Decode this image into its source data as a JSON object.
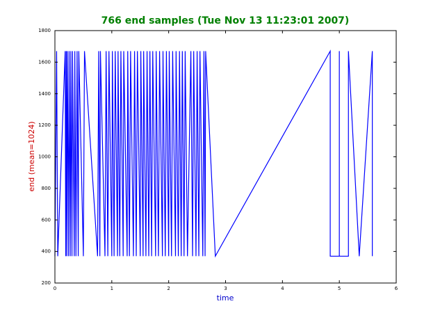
{
  "chart_data": {
    "type": "line",
    "title": "766 end samples (Tue Nov 13 11:23:01 2007)",
    "x_label": "time",
    "y_label": "end (mean=1024)",
    "color": "#0000ff",
    "x": [
      0,
      0.03,
      0.05,
      0.18,
      0.19,
      0.2,
      0.21,
      0.22,
      0.24,
      0.25,
      0.27,
      0.28,
      0.3,
      0.31,
      0.34,
      0.35,
      0.37,
      0.39,
      0.41,
      0.42,
      0.5,
      0.52,
      0.75,
      0.77,
      0.79,
      0.8,
      0.88,
      0.9,
      0.93,
      0.95,
      1.0,
      1.01,
      1.04,
      1.06,
      1.1,
      1.11,
      1.14,
      1.16,
      1.2,
      1.21,
      1.27,
      1.28,
      1.31,
      1.33,
      1.38,
      1.4,
      1.43,
      1.45,
      1.5,
      1.51,
      1.55,
      1.56,
      1.6,
      1.62,
      1.65,
      1.67,
      1.7,
      1.72,
      1.77,
      1.78,
      1.82,
      1.84,
      1.89,
      1.9,
      1.94,
      1.96,
      2.0,
      2.01,
      2.05,
      2.07,
      2.12,
      2.13,
      2.17,
      2.19,
      2.22,
      2.24,
      2.27,
      2.29,
      2.33,
      2.39,
      2.42,
      2.44,
      2.48,
      2.5,
      2.53,
      2.55,
      2.6,
      2.62,
      2.64,
      2.65,
      2.82,
      4.84,
      4.84,
      5.0,
      5.0,
      5.0,
      5.16,
      5.16,
      5.35,
      5.58,
      5.58
    ],
    "values": [
      370,
      1670,
      370,
      1670,
      370,
      1670,
      370,
      1670,
      370,
      1670,
      370,
      1670,
      370,
      1670,
      370,
      1670,
      370,
      1670,
      370,
      1670,
      370,
      1670,
      370,
      1670,
      370,
      1670,
      370,
      1670,
      370,
      1670,
      370,
      1670,
      370,
      1670,
      370,
      1670,
      370,
      1670,
      370,
      1670,
      370,
      1670,
      370,
      1670,
      370,
      1670,
      370,
      1670,
      370,
      1670,
      370,
      1670,
      370,
      1670,
      370,
      1670,
      370,
      1670,
      370,
      1670,
      370,
      1670,
      370,
      1670,
      370,
      1670,
      370,
      1670,
      370,
      1670,
      370,
      1670,
      370,
      1670,
      370,
      1670,
      370,
      1670,
      370,
      1670,
      370,
      1670,
      370,
      1670,
      370,
      1670,
      370,
      1670,
      370,
      1670,
      370,
      1670,
      370,
      370,
      1670,
      370,
      370,
      1670,
      370,
      1670,
      370
    ],
    "xlim": [
      0,
      6
    ],
    "xticks": [
      0,
      1,
      2,
      3,
      4,
      5,
      6
    ],
    "ylim": [
      200,
      1800
    ],
    "yticks": [
      200,
      400,
      600,
      800,
      1000,
      1200,
      1400,
      1600,
      1800
    ]
  }
}
